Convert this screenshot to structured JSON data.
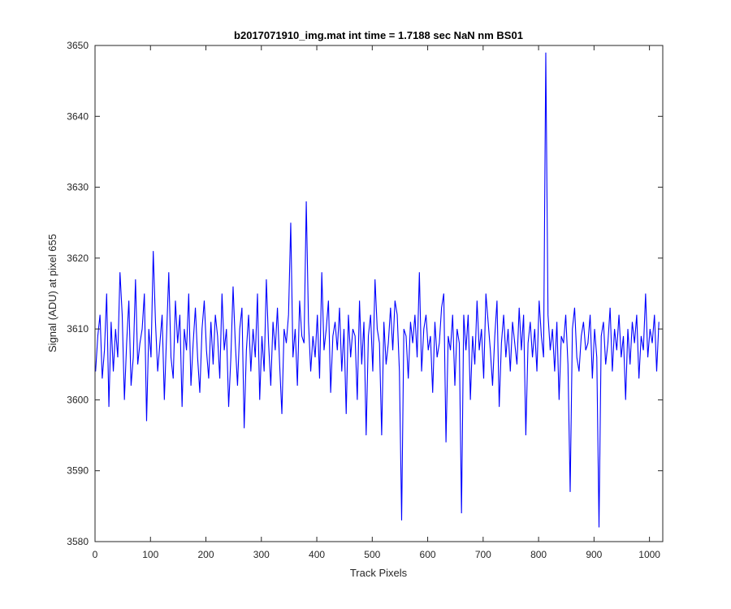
{
  "chart_data": {
    "type": "line",
    "title": "b2017071910_img.mat int time = 1.7188 sec  NaN nm BS01",
    "xlabel": "Track Pixels",
    "ylabel": "Signal (ADU) at pixel 655",
    "xlim": [
      0,
      1024
    ],
    "ylim": [
      3580,
      3650
    ],
    "xticks": [
      0,
      100,
      200,
      300,
      400,
      500,
      600,
      700,
      800,
      900,
      1000
    ],
    "yticks": [
      3580,
      3590,
      3600,
      3610,
      3620,
      3630,
      3640,
      3650
    ],
    "grid": false,
    "line_color": "#0000ff",
    "series": [
      {
        "name": "",
        "x_start": 1,
        "x_step": 4,
        "values": [
          3604,
          3609,
          3612,
          3603,
          3607,
          3615,
          3599,
          3611,
          3604,
          3610,
          3606,
          3618,
          3612,
          3600,
          3608,
          3614,
          3602,
          3606,
          3617,
          3605,
          3608,
          3610,
          3615,
          3597,
          3610,
          3606,
          3621,
          3611,
          3604,
          3608,
          3612,
          3600,
          3609,
          3618,
          3606,
          3603,
          3614,
          3608,
          3612,
          3599,
          3610,
          3607,
          3615,
          3602,
          3608,
          3613,
          3606,
          3601,
          3610,
          3614,
          3607,
          3603,
          3611,
          3605,
          3612,
          3609,
          3603,
          3615,
          3607,
          3610,
          3599,
          3606,
          3616,
          3608,
          3602,
          3610,
          3613,
          3596,
          3607,
          3612,
          3604,
          3610,
          3606,
          3615,
          3600,
          3609,
          3604,
          3617,
          3608,
          3602,
          3611,
          3607,
          3613,
          3605,
          3598,
          3610,
          3608,
          3612,
          3625,
          3606,
          3610,
          3602,
          3614,
          3609,
          3608,
          3628,
          3611,
          3604,
          3609,
          3606,
          3612,
          3603,
          3618,
          3607,
          3610,
          3614,
          3601,
          3609,
          3611,
          3607,
          3613,
          3604,
          3610,
          3598,
          3612,
          3606,
          3610,
          3609,
          3600,
          3614,
          3605,
          3611,
          3595,
          3609,
          3612,
          3604,
          3617,
          3610,
          3608,
          3595,
          3611,
          3605,
          3608,
          3613,
          3607,
          3614,
          3612,
          3604,
          3583,
          3610,
          3609,
          3603,
          3611,
          3608,
          3612,
          3606,
          3618,
          3604,
          3610,
          3612,
          3607,
          3609,
          3601,
          3611,
          3606,
          3608,
          3613,
          3615,
          3594,
          3609,
          3607,
          3612,
          3602,
          3610,
          3608,
          3584,
          3612,
          3607,
          3612,
          3600,
          3609,
          3605,
          3614,
          3607,
          3610,
          3603,
          3615,
          3611,
          3607,
          3602,
          3609,
          3614,
          3599,
          3608,
          3612,
          3606,
          3610,
          3604,
          3611,
          3608,
          3605,
          3613,
          3607,
          3612,
          3595,
          3608,
          3611,
          3606,
          3610,
          3604,
          3614,
          3609,
          3606,
          3649,
          3612,
          3607,
          3610,
          3604,
          3611,
          3600,
          3609,
          3608,
          3612,
          3605,
          3587,
          3610,
          3613,
          3606,
          3604,
          3609,
          3611,
          3607,
          3608,
          3612,
          3603,
          3610,
          3606,
          3582,
          3609,
          3611,
          3605,
          3608,
          3613,
          3604,
          3610,
          3607,
          3612,
          3606,
          3609,
          3600,
          3610,
          3605,
          3611,
          3608,
          3612,
          3603,
          3609,
          3607,
          3615,
          3606,
          3610,
          3608,
          3612,
          3604,
          3611
        ]
      }
    ]
  }
}
